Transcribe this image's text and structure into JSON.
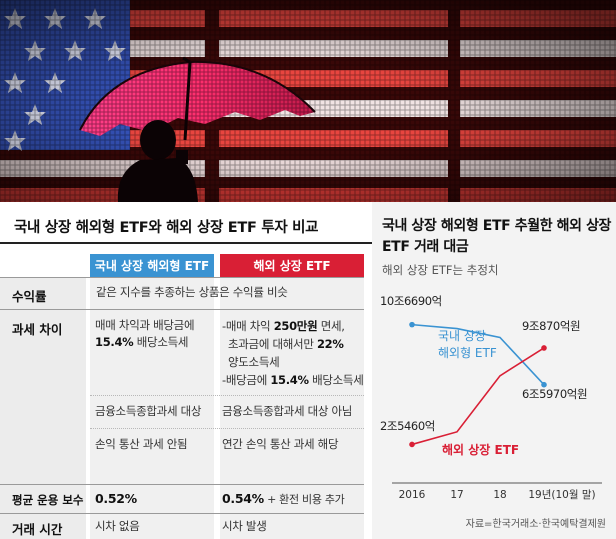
{
  "table": {
    "title": "국내 상장 해외형 ETF와 해외 상장 ETF 투자 비교",
    "col_domestic": "국내 상장 해외형 ETF",
    "col_overseas": "해외 상장 ETF",
    "rows": {
      "return": {
        "label": "수익률",
        "text": "같은 지수를 추종하는 상품은 수익률 비슷"
      },
      "tax": {
        "label": "과세 차이",
        "domestic_1": "매매 차익과 배당금에",
        "domestic_2a": "15.4%",
        "domestic_2b": " 배당소득세",
        "overseas_1a": "-매매 차익 ",
        "overseas_1b": "250만원",
        "overseas_1c": " 면세,",
        "overseas_2a": "초과금에 대해서만 ",
        "overseas_2b": "22%",
        "overseas_3": "양도소득세",
        "overseas_4a": "-배당금에 ",
        "overseas_4b": "15.4%",
        "overseas_4c": " 배당소득세",
        "domestic_comp": "금융소득종합과세 대상",
        "overseas_comp": "금융소득종합과세 대상 아님",
        "domestic_loss": "손익 통산 과세 안됨",
        "overseas_loss": "연간 손익 통산 과세 해당"
      },
      "fee": {
        "label": "평균 운용 보수",
        "domestic": "0.52%",
        "overseas": "0.54%",
        "overseas_extra": " + 환전 비용 추가"
      },
      "trade": {
        "label": "거래 시간",
        "domestic": "시차 없음",
        "overseas": "시차 발생"
      }
    }
  },
  "chart_data": {
    "type": "line",
    "title": "국내 상장 해외형 ETF 추월한 해외 상장 ETF 거래 대금",
    "subtitle": "해외 상장 ETF는 추정치",
    "categories": [
      "2016",
      "17",
      "18",
      "19년(10월 말)"
    ],
    "series": [
      {
        "name": "국내 상장 해외형 ETF",
        "color": "#3a93d2",
        "values": [
          10.669,
          10.4,
          9.8,
          6.597
        ]
      },
      {
        "name": "해외 상장 ETF",
        "color": "#d91f35",
        "values": [
          2.546,
          3.4,
          7.2,
          9.087
        ]
      }
    ],
    "ylim": [
      0,
      12
    ],
    "annotations": {
      "domestic_start": "10조6690억",
      "domestic_end": "6조5970억원",
      "overseas_start": "2조5460억",
      "overseas_end": "9조870억원"
    },
    "source": "자료=한국거래소·한국예탁결제원"
  }
}
